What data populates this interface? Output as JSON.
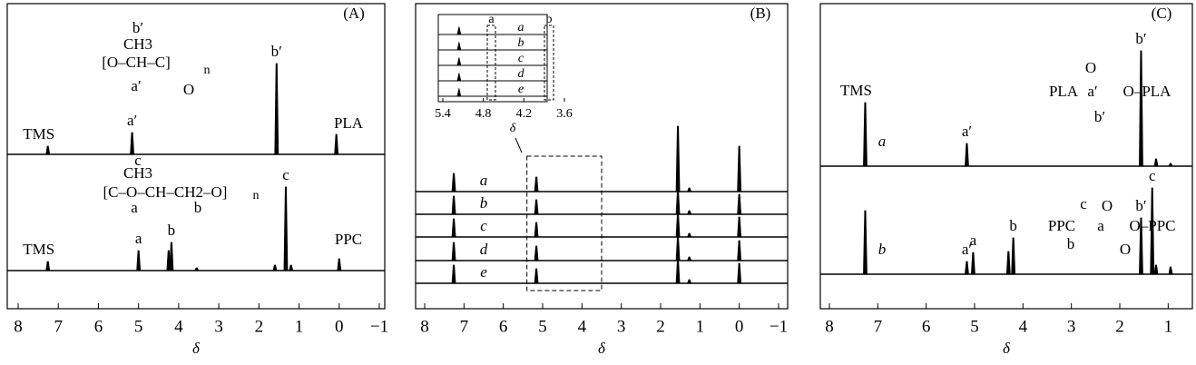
{
  "chart_data": [
    {
      "type": "spectrum",
      "panel_label": "(A)",
      "xlabel": "δ",
      "xlim": [
        8,
        -1
      ],
      "xticks": [
        8,
        7,
        6,
        5,
        4,
        3,
        2,
        1,
        0,
        {
          "value": -1,
          "label": "−1"
        }
      ],
      "label_side": "right",
      "annotations": [
        "b′",
        "CH3",
        "[O–CH–C]",
        "n",
        "a′",
        "O",
        "c",
        "CH3",
        "[C–O–CH–CH2–O]",
        "n",
        "a",
        "b"
      ],
      "series": [
        {
          "name": "PLA",
          "color": "#000000",
          "x": [
            7.26,
            5.16,
            1.56,
            0.07
          ],
          "values": [
            9,
            24,
            100,
            22
          ],
          "peak_labels": [
            "TMS",
            "a′",
            "b′",
            null
          ]
        },
        {
          "name": "PPC",
          "color": "#000000",
          "x": [
            7.26,
            5.0,
            4.25,
            4.18,
            3.55,
            1.6,
            1.33,
            1.2,
            0.0
          ],
          "values": [
            10,
            22,
            22,
            31,
            3,
            6,
            92,
            6,
            13
          ],
          "peak_labels": [
            "TMS",
            "a",
            null,
            "b",
            null,
            null,
            "c",
            null,
            null
          ]
        }
      ]
    },
    {
      "type": "spectrum",
      "panel_label": "(B)",
      "xlabel": "δ",
      "xlim": [
        8,
        -1
      ],
      "xticks": [
        8,
        7,
        6,
        5,
        4,
        3,
        2,
        1,
        0,
        {
          "value": -1,
          "label": "−1"
        }
      ],
      "label_side": "left",
      "inset": {
        "xlim": [
          5.4,
          3.6
        ],
        "xticks": [
          5.4,
          4.8,
          4.2,
          3.6
        ],
        "xlabel": "δ",
        "region_labels": [
          "a",
          "b"
        ]
      },
      "series": [
        {
          "name": "a",
          "color": "#000000",
          "x": [
            7.26,
            5.16,
            1.56,
            1.27,
            0.0
          ],
          "values": [
            20,
            16,
            72,
            4,
            50
          ]
        },
        {
          "name": "b",
          "color": "#000000",
          "x": [
            7.26,
            5.16,
            1.56,
            1.27,
            0.0
          ],
          "values": [
            20,
            16,
            26,
            4,
            22
          ]
        },
        {
          "name": "c",
          "color": "#000000",
          "x": [
            7.26,
            5.16,
            1.56,
            1.27,
            0.0
          ],
          "values": [
            20,
            16,
            26,
            4,
            22
          ]
        },
        {
          "name": "d",
          "color": "#000000",
          "x": [
            7.26,
            5.16,
            1.56,
            1.27,
            0.0
          ],
          "values": [
            20,
            16,
            26,
            4,
            22
          ]
        },
        {
          "name": "e",
          "color": "#000000",
          "x": [
            7.26,
            5.16,
            1.56,
            1.27,
            0.0
          ],
          "values": [
            20,
            16,
            26,
            4,
            22
          ]
        }
      ]
    },
    {
      "type": "spectrum",
      "panel_label": "(C)",
      "xlabel": "δ",
      "xlim": [
        8,
        0.5
      ],
      "xticks": [
        8,
        7,
        6,
        5,
        4,
        3,
        2,
        1
      ],
      "label_side": "left",
      "annotations": [
        "O",
        "PLA",
        "a′",
        "O–PLA",
        "b′",
        "c",
        "O",
        "PPC",
        "b",
        "a",
        "O",
        "O–PPC"
      ],
      "series": [
        {
          "name": "a",
          "color": "#000000",
          "x": [
            7.26,
            5.16,
            1.56,
            1.25,
            0.95
          ],
          "values": [
            70,
            25,
            127,
            8,
            3
          ],
          "peak_labels": [
            "TMS",
            "a′",
            "b′",
            null,
            null
          ]
        },
        {
          "name": "b",
          "color": "#000000",
          "x": [
            7.26,
            5.16,
            5.03,
            4.3,
            4.2,
            1.56,
            1.33,
            1.25,
            0.95
          ],
          "values": [
            70,
            14,
            24,
            25,
            40,
            62,
            95,
            10,
            8
          ],
          "peak_labels": [
            null,
            "a′",
            "a",
            null,
            "b",
            "b′",
            "c",
            null,
            null
          ]
        }
      ]
    }
  ]
}
